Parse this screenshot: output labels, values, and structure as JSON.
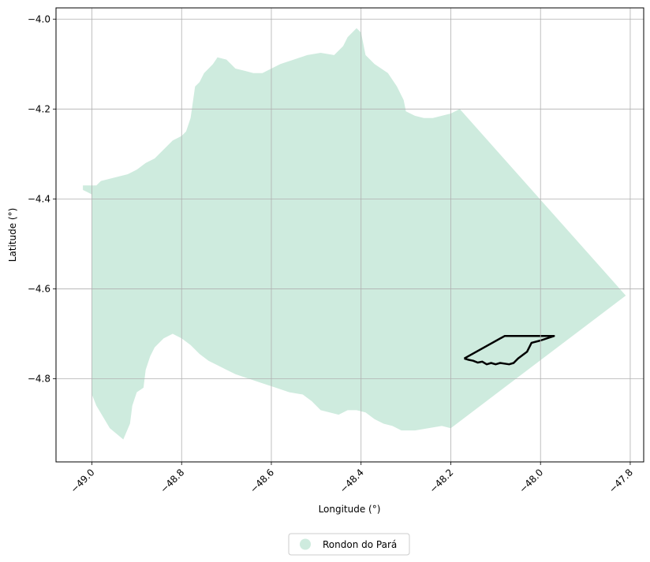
{
  "chart_data": {
    "type": "map",
    "xlabel": "Longitude (°)",
    "ylabel": "Latitude (°)",
    "xlim": [
      -49.08,
      -47.77
    ],
    "ylim": [
      -4.985,
      -3.975
    ],
    "x_ticks": [
      {
        "value": -49.0,
        "label": "−49.0"
      },
      {
        "value": -48.8,
        "label": "−48.8"
      },
      {
        "value": -48.6,
        "label": "−48.6"
      },
      {
        "value": -48.4,
        "label": "−48.4"
      },
      {
        "value": -48.2,
        "label": "−48.2"
      },
      {
        "value": -48.0,
        "label": "−48.0"
      },
      {
        "value": -47.8,
        "label": "−47.8"
      }
    ],
    "y_ticks": [
      {
        "value": -4.0,
        "label": "−4.0"
      },
      {
        "value": -4.2,
        "label": "−4.2"
      },
      {
        "value": -4.4,
        "label": "−4.4"
      },
      {
        "value": -4.6,
        "label": "−4.6"
      },
      {
        "value": -4.8,
        "label": "−4.8"
      }
    ],
    "grid": true,
    "legend_position": "bottom-center",
    "series": [
      {
        "name": "Rondon do Pará",
        "color": "#ceebde",
        "polygon": [
          [
            -49.02,
            -4.37
          ],
          [
            -48.99,
            -4.37
          ],
          [
            -48.98,
            -4.36
          ],
          [
            -48.96,
            -4.355
          ],
          [
            -48.94,
            -4.35
          ],
          [
            -48.92,
            -4.345
          ],
          [
            -48.9,
            -4.335
          ],
          [
            -48.88,
            -4.32
          ],
          [
            -48.86,
            -4.31
          ],
          [
            -48.84,
            -4.29
          ],
          [
            -48.82,
            -4.27
          ],
          [
            -48.8,
            -4.26
          ],
          [
            -48.79,
            -4.25
          ],
          [
            -48.78,
            -4.22
          ],
          [
            -48.77,
            -4.15
          ],
          [
            -48.76,
            -4.14
          ],
          [
            -48.75,
            -4.12
          ],
          [
            -48.74,
            -4.11
          ],
          [
            -48.73,
            -4.1
          ],
          [
            -48.72,
            -4.085
          ],
          [
            -48.7,
            -4.09
          ],
          [
            -48.68,
            -4.11
          ],
          [
            -48.66,
            -4.115
          ],
          [
            -48.64,
            -4.12
          ],
          [
            -48.62,
            -4.12
          ],
          [
            -48.6,
            -4.11
          ],
          [
            -48.58,
            -4.1
          ],
          [
            -48.55,
            -4.09
          ],
          [
            -48.52,
            -4.08
          ],
          [
            -48.49,
            -4.075
          ],
          [
            -48.46,
            -4.08
          ],
          [
            -48.44,
            -4.06
          ],
          [
            -48.43,
            -4.04
          ],
          [
            -48.41,
            -4.02
          ],
          [
            -48.4,
            -4.03
          ],
          [
            -48.39,
            -4.08
          ],
          [
            -48.37,
            -4.1
          ],
          [
            -48.34,
            -4.12
          ],
          [
            -48.32,
            -4.15
          ],
          [
            -48.305,
            -4.18
          ],
          [
            -48.3,
            -4.205
          ],
          [
            -48.28,
            -4.215
          ],
          [
            -48.26,
            -4.22
          ],
          [
            -48.24,
            -4.22
          ],
          [
            -48.22,
            -4.215
          ],
          [
            -48.2,
            -4.21
          ],
          [
            -48.18,
            -4.2
          ],
          [
            -47.81,
            -4.615
          ],
          [
            -48.2,
            -4.91
          ],
          [
            -48.22,
            -4.905
          ],
          [
            -48.25,
            -4.91
          ],
          [
            -48.28,
            -4.915
          ],
          [
            -48.31,
            -4.915
          ],
          [
            -48.33,
            -4.905
          ],
          [
            -48.35,
            -4.9
          ],
          [
            -48.37,
            -4.89
          ],
          [
            -48.39,
            -4.875
          ],
          [
            -48.41,
            -4.87
          ],
          [
            -48.43,
            -4.87
          ],
          [
            -48.45,
            -4.88
          ],
          [
            -48.47,
            -4.875
          ],
          [
            -48.49,
            -4.87
          ],
          [
            -48.51,
            -4.85
          ],
          [
            -48.53,
            -4.835
          ],
          [
            -48.56,
            -4.83
          ],
          [
            -48.59,
            -4.82
          ],
          [
            -48.62,
            -4.81
          ],
          [
            -48.65,
            -4.8
          ],
          [
            -48.68,
            -4.79
          ],
          [
            -48.7,
            -4.78
          ],
          [
            -48.72,
            -4.77
          ],
          [
            -48.74,
            -4.76
          ],
          [
            -48.76,
            -4.745
          ],
          [
            -48.78,
            -4.725
          ],
          [
            -48.8,
            -4.71
          ],
          [
            -48.82,
            -4.7
          ],
          [
            -48.84,
            -4.71
          ],
          [
            -48.86,
            -4.73
          ],
          [
            -48.87,
            -4.75
          ],
          [
            -48.88,
            -4.78
          ],
          [
            -48.885,
            -4.82
          ],
          [
            -48.9,
            -4.83
          ],
          [
            -48.91,
            -4.86
          ],
          [
            -48.915,
            -4.9
          ],
          [
            -48.93,
            -4.935
          ],
          [
            -48.96,
            -4.91
          ],
          [
            -48.99,
            -4.86
          ],
          [
            -49.0,
            -4.835
          ],
          [
            -49.0,
            -4.39
          ],
          [
            -49.01,
            -4.385
          ],
          [
            -49.02,
            -4.38
          ]
        ]
      }
    ],
    "outline": {
      "color": "#000000",
      "polyline": [
        [
          -48.17,
          -4.755
        ],
        [
          -48.08,
          -4.705
        ],
        [
          -47.97,
          -4.705
        ],
        [
          -48.0,
          -4.715
        ],
        [
          -48.02,
          -4.72
        ],
        [
          -48.03,
          -4.74
        ],
        [
          -48.05,
          -4.755
        ],
        [
          -48.06,
          -4.765
        ],
        [
          -48.07,
          -4.768
        ],
        [
          -48.09,
          -4.765
        ],
        [
          -48.1,
          -4.768
        ],
        [
          -48.11,
          -4.765
        ],
        [
          -48.12,
          -4.768
        ],
        [
          -48.13,
          -4.762
        ],
        [
          -48.14,
          -4.764
        ],
        [
          -48.15,
          -4.76
        ],
        [
          -48.16,
          -4.758
        ],
        [
          -48.17,
          -4.755
        ]
      ]
    }
  }
}
